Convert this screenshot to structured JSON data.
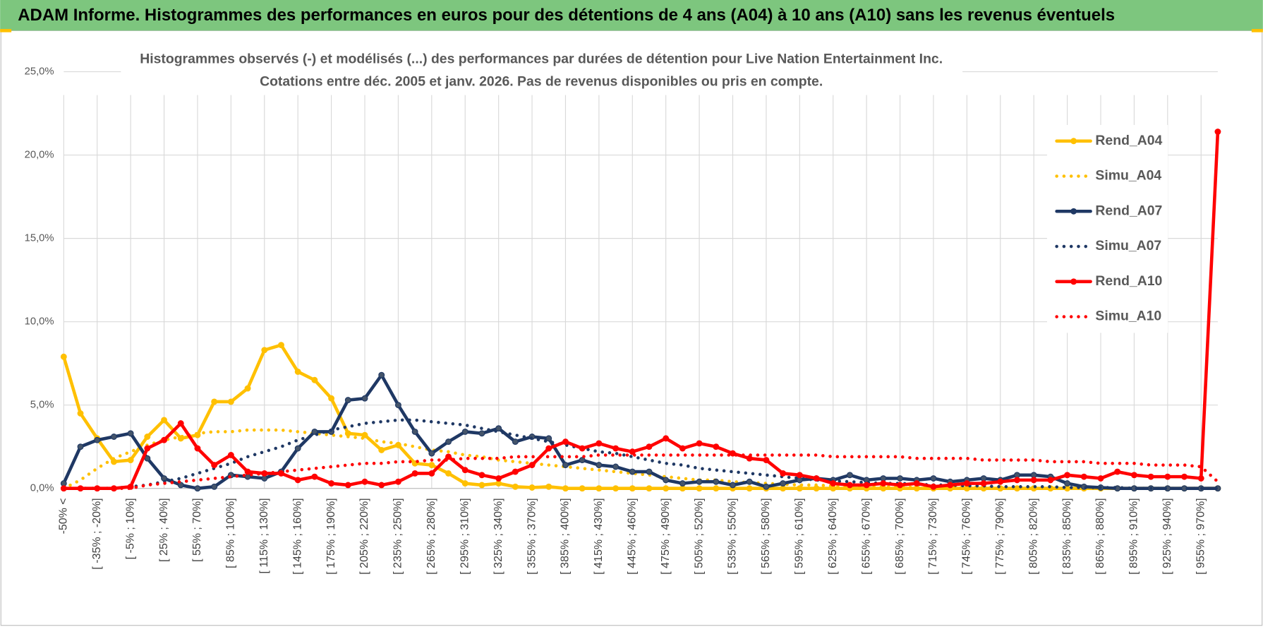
{
  "header": "ADAM Informe. Histogrammes des performances en euros pour des détentions de 4 ans (A04) à 10 ans (A10) sans les revenus éventuels",
  "chart_data": {
    "type": "line",
    "title": "Histogrammes observés (-) et modélisés (...) des performances par durées de détention pour Live  Nation Entertainment Inc.",
    "subtitle": "Cotations entre déc. 2005 et janv. 2026.  Pas de revenus disponibles ou pris en compte.",
    "categories": [
      "-50% <",
      null,
      "[ -35% ; -20%]",
      null,
      "[ -5% ; 10%]",
      null,
      "[ 25% ; 40%]",
      null,
      "[ 55% ; 70%]",
      null,
      "[ 85% ; 100%]",
      null,
      "[ 115% ; 130%]",
      null,
      "[ 145% ; 160%]",
      null,
      "[ 175% ; 190%]",
      null,
      "[ 205% ; 220%]",
      null,
      "[ 235% ; 250%]",
      null,
      "[ 265% ; 280%]",
      null,
      "[ 295% ; 310%]",
      null,
      "[ 325% ; 340%]",
      null,
      "[ 355% ; 370%]",
      null,
      "[ 385% ; 400%]",
      null,
      "[ 415% ; 430%]",
      null,
      "[ 445% ; 460%]",
      null,
      "[ 475% ; 490%]",
      null,
      "[ 505% ; 520%]",
      null,
      "[ 535% ; 550%]",
      null,
      "[ 565% ; 580%]",
      null,
      "[ 595% ; 610%]",
      null,
      "[ 625% ; 640%]",
      null,
      "[ 655% ; 670%]",
      null,
      "[ 685% ; 700%]",
      null,
      "[ 715% ; 730%]",
      null,
      "[ 745% ; 760%]",
      null,
      "[ 775% ; 790%]",
      null,
      "[ 805% ; 820%]",
      null,
      "[ 835% ; 850%]",
      null,
      "[ 865% ; 880%]",
      null,
      "[ 895% ; 910%]",
      null,
      "[ 925% ; 940%]",
      null,
      "[ 955% ; 970%]",
      null
    ],
    "ylim": [
      0,
      25
    ],
    "yticks": [
      {
        "value": 0,
        "label": "0,0%"
      },
      {
        "value": 5,
        "label": "5,0%"
      },
      {
        "value": 10,
        "label": "10,0%"
      },
      {
        "value": 15,
        "label": "15,0%"
      },
      {
        "value": 20,
        "label": "20,0%"
      },
      {
        "value": 25,
        "label": "25,0%"
      }
    ],
    "grid": true,
    "legend": "right",
    "series": [
      {
        "name": "Rend_A04",
        "color": "#ffc000",
        "style": "solid",
        "markers": true,
        "values": [
          7.9,
          4.5,
          3.0,
          1.6,
          1.7,
          3.1,
          4.1,
          3.0,
          3.2,
          5.2,
          5.2,
          6.0,
          8.3,
          8.6,
          7.0,
          6.5,
          5.4,
          3.3,
          3.2,
          2.3,
          2.6,
          1.5,
          1.4,
          0.9,
          0.3,
          0.2,
          0.3,
          0.1,
          0.05,
          0.1,
          0,
          0,
          0,
          0,
          0,
          0,
          0,
          0,
          0,
          0,
          0,
          0,
          0,
          0,
          0,
          0,
          0,
          0,
          0,
          0,
          0,
          0,
          0,
          0,
          0,
          0,
          0,
          0,
          0,
          0,
          0,
          0,
          0,
          0,
          0,
          0,
          0,
          0,
          0,
          0
        ]
      },
      {
        "name": "Simu_A04",
        "color": "#ffc000",
        "style": "dotted",
        "markers": false,
        "values": [
          0,
          0.5,
          1.2,
          1.8,
          2.2,
          2.6,
          2.9,
          3.1,
          3.3,
          3.4,
          3.4,
          3.5,
          3.5,
          3.5,
          3.4,
          3.3,
          3.2,
          3.1,
          3.0,
          2.8,
          2.7,
          2.5,
          2.3,
          2.2,
          2.0,
          1.9,
          1.7,
          1.6,
          1.5,
          1.4,
          1.3,
          1.2,
          1.1,
          1.0,
          0.9,
          0.8,
          0.7,
          0.6,
          0.5,
          0.5,
          0.4,
          0.35,
          0.3,
          0.25,
          0.2,
          0.2,
          0.15,
          0.1,
          0.1,
          0.1,
          0.1,
          0.05,
          0.05,
          0.05,
          0.05,
          0.05,
          0,
          0,
          0,
          0,
          0,
          0,
          0,
          0,
          0,
          0,
          0,
          0,
          0,
          0
        ]
      },
      {
        "name": "Rend_A07",
        "color": "#1f3864",
        "style": "solid",
        "markers": true,
        "values": [
          0.3,
          2.5,
          2.9,
          3.1,
          3.3,
          1.8,
          0.6,
          0.2,
          0.0,
          0.1,
          0.8,
          0.7,
          0.6,
          1.0,
          2.4,
          3.4,
          3.4,
          5.3,
          5.4,
          6.8,
          5.0,
          3.4,
          2.1,
          2.8,
          3.4,
          3.3,
          3.6,
          2.8,
          3.1,
          3.0,
          1.4,
          1.7,
          1.4,
          1.3,
          1.0,
          1.0,
          0.5,
          0.3,
          0.4,
          0.4,
          0.2,
          0.4,
          0.1,
          0.3,
          0.5,
          0.6,
          0.5,
          0.8,
          0.5,
          0.6,
          0.6,
          0.5,
          0.6,
          0.4,
          0.5,
          0.6,
          0.5,
          0.8,
          0.8,
          0.7,
          0.3,
          0.1,
          0.05,
          0,
          0,
          0,
          0,
          0,
          0,
          0
        ]
      },
      {
        "name": "Simu_A07",
        "color": "#1f3864",
        "style": "dotted",
        "markers": false,
        "values": [
          0,
          0,
          0,
          0,
          0.1,
          0.2,
          0.4,
          0.6,
          0.9,
          1.2,
          1.5,
          1.9,
          2.2,
          2.5,
          2.9,
          3.2,
          3.5,
          3.7,
          3.9,
          4.0,
          4.1,
          4.1,
          4.0,
          3.9,
          3.8,
          3.6,
          3.4,
          3.2,
          3.0,
          2.8,
          2.6,
          2.4,
          2.2,
          2.1,
          1.9,
          1.7,
          1.5,
          1.4,
          1.2,
          1.1,
          1.0,
          0.9,
          0.8,
          0.7,
          0.6,
          0.5,
          0.45,
          0.4,
          0.35,
          0.3,
          0.3,
          0.25,
          0.2,
          0.2,
          0.15,
          0.15,
          0.1,
          0.1,
          0.1,
          0.1,
          0.05,
          0.05,
          0.05,
          0.05,
          0,
          0,
          0,
          0,
          0,
          0
        ]
      },
      {
        "name": "Rend_A10",
        "color": "#ff0000",
        "style": "solid",
        "markers": true,
        "values": [
          0,
          0,
          0,
          0,
          0.1,
          2.4,
          2.9,
          3.9,
          2.4,
          1.4,
          2.0,
          1.0,
          0.9,
          0.9,
          0.5,
          0.7,
          0.3,
          0.2,
          0.4,
          0.2,
          0.4,
          0.9,
          0.9,
          1.9,
          1.1,
          0.8,
          0.6,
          1.0,
          1.4,
          2.4,
          2.8,
          2.4,
          2.7,
          2.4,
          2.2,
          2.5,
          3.0,
          2.4,
          2.7,
          2.5,
          2.1,
          1.8,
          1.7,
          0.9,
          0.8,
          0.6,
          0.3,
          0.2,
          0.2,
          0.3,
          0.2,
          0.3,
          0.1,
          0.2,
          0.3,
          0.3,
          0.4,
          0.5,
          0.5,
          0.5,
          0.8,
          0.7,
          0.6,
          1.0,
          0.8,
          0.7,
          0.7,
          0.7,
          0.6,
          21.4
        ]
      },
      {
        "name": "Simu_A10",
        "color": "#ff0000",
        "style": "dotted",
        "markers": false,
        "values": [
          0,
          0,
          0,
          0,
          0,
          0.2,
          0.3,
          0.4,
          0.5,
          0.6,
          0.7,
          0.8,
          0.9,
          1.0,
          1.1,
          1.2,
          1.3,
          1.4,
          1.5,
          1.5,
          1.6,
          1.6,
          1.7,
          1.7,
          1.8,
          1.8,
          1.8,
          1.9,
          1.9,
          1.9,
          1.9,
          1.9,
          2.0,
          2.0,
          2.0,
          2.0,
          2.0,
          2.0,
          2.0,
          2.0,
          2.0,
          2.0,
          2.0,
          2.0,
          2.0,
          2.0,
          1.9,
          1.9,
          1.9,
          1.9,
          1.9,
          1.8,
          1.8,
          1.8,
          1.8,
          1.7,
          1.7,
          1.7,
          1.7,
          1.6,
          1.6,
          1.6,
          1.5,
          1.5,
          1.5,
          1.4,
          1.4,
          1.4,
          1.3,
          0.4
        ]
      }
    ]
  }
}
